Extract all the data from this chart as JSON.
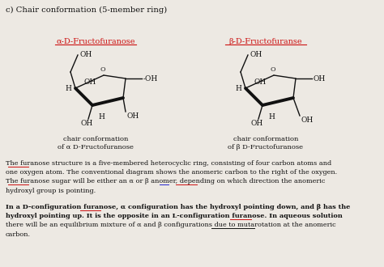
{
  "title": "c) Chair conformation (5-member ring)",
  "bg_color": "#ede9e3",
  "text_color": "#111111",
  "alpha_title": "α-D-Fructofuranose",
  "beta_title": "β-D-Fructofuranse",
  "alpha_cap1": "chair conformation",
  "alpha_cap2": "of α D-Fructofuranose",
  "beta_cap1": "chair conformation",
  "beta_cap2": "of β D-Fructofuranose",
  "p1_lines": [
    "The furanose structure is a five-membered heterocyclic ring, consisting of four carbon atoms and",
    "one oxygen atom. The conventional diagram shows the anomeric carbon to the right of the oxygen.",
    "The furanose sugar will be either an α or β anomer, depending on which direction the anomeric",
    "hydroxyl group is pointing."
  ],
  "p2_lines": [
    "In a D-configuration furanose, α configuration has the hydroxyl pointing down, and β has the",
    "hydroxyl pointing up. It is the opposite in an L-configuration furanose. In aqueous solution",
    "there will be an equilibrium mixture of α and β configurations due to mutarotation at the anomeric",
    "carbon."
  ],
  "p2_bold": [
    true,
    true,
    false,
    false
  ],
  "red": "#cc1111",
  "blue": "#2222cc",
  "black": "#111111",
  "lw_thin": 1.0,
  "lw_thick": 2.8,
  "fs_title": 7.2,
  "fs_struct": 6.5,
  "fs_cap": 6.0,
  "fs_body": 5.9
}
